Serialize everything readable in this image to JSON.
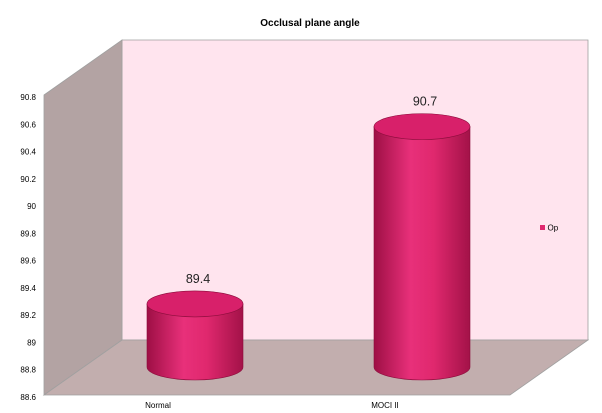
{
  "chart_data": {
    "type": "bar",
    "title": "Occlusal plane angle",
    "categories": [
      "Normal",
      "MOCI II"
    ],
    "series": [
      {
        "name": "Op",
        "values": [
          89.4,
          90.7
        ],
        "color": "#e0286e"
      }
    ],
    "data_labels": [
      "89.4",
      "90.7"
    ],
    "ylim": [
      88.6,
      90.8
    ],
    "yticks": [
      "88.6",
      "88.8",
      "89",
      "89.2",
      "89.4",
      "89.6",
      "89.8",
      "90",
      "90.2",
      "90.4",
      "90.6",
      "90.8"
    ],
    "xlabel": "",
    "ylabel": "",
    "grid": false,
    "legend_position": "right",
    "style": "3d-cylinder",
    "colors": {
      "back_wall": "#ffe4ee",
      "side_wall": "#b3a3a3",
      "floor": "#c2aeae",
      "bar": "#e0286e"
    }
  }
}
